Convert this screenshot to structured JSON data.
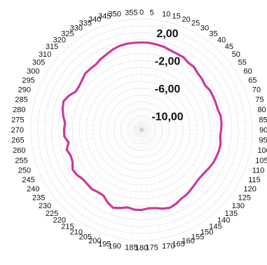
{
  "chart_data": {
    "type": "line",
    "subtype": "polar",
    "title": "",
    "angle_unit": "degrees",
    "angles": [
      0,
      5,
      10,
      15,
      20,
      25,
      30,
      35,
      40,
      45,
      50,
      55,
      60,
      65,
      70,
      75,
      80,
      85,
      90,
      95,
      100,
      105,
      110,
      115,
      120,
      125,
      130,
      135,
      140,
      145,
      150,
      155,
      160,
      165,
      170,
      175,
      180,
      185,
      190,
      195,
      200,
      205,
      210,
      215,
      220,
      225,
      230,
      235,
      240,
      245,
      250,
      255,
      260,
      265,
      270,
      275,
      280,
      285,
      290,
      295,
      300,
      305,
      310,
      315,
      320,
      325,
      330,
      335,
      340,
      345,
      350,
      355
    ],
    "angle_tick_labels": [
      "0",
      "5",
      "10",
      "15",
      "20",
      "25",
      "30",
      "35",
      "40",
      "45",
      "50",
      "55",
      "60",
      "65",
      "70",
      "75",
      "80",
      "85",
      "90",
      "95",
      "100",
      "105",
      "110",
      "115",
      "120",
      "125",
      "130",
      "135",
      "140",
      "145",
      "150",
      "155",
      "160",
      "165",
      "170",
      "175",
      "180",
      "185",
      "190",
      "195",
      "200",
      "205",
      "210",
      "215",
      "220",
      "225",
      "230",
      "235",
      "240",
      "245",
      "250",
      "255",
      "260",
      "265",
      "270",
      "275",
      "280",
      "285",
      "290",
      "295",
      "300",
      "305",
      "310",
      "315",
      "320",
      "325",
      "330",
      "335",
      "340",
      "345",
      "350",
      "355"
    ],
    "radial_range": [
      -12,
      4
    ],
    "radial_tick_labels": [
      "2,00",
      "-2,00",
      "-6,00",
      "-10,00"
    ],
    "radial_tick_values": [
      2,
      -2,
      -6,
      -10
    ],
    "grid": true,
    "series": [
      {
        "color": "#cc3a9a",
        "values": [
          0.6,
          0.6,
          0.5,
          0.4,
          0.2,
          0.1,
          0.1,
          -0.2,
          -0.2,
          -0.5,
          -0.6,
          -0.8,
          -0.6,
          -0.6,
          -0.6,
          -0.6,
          -0.4,
          -0.4,
          -0.5,
          -0.6,
          -0.4,
          -0.4,
          -0.5,
          -0.6,
          -0.8,
          -1.0,
          -1.1,
          -1.0,
          -0.8,
          -0.6,
          -0.5,
          -0.2,
          0.0,
          -0.2,
          -0.5,
          -0.6,
          -0.4,
          -0.4,
          -0.6,
          -0.3,
          0.0,
          -0.4,
          -1.0,
          -1.0,
          -0.8,
          -0.9,
          -0.9,
          -0.6,
          -0.5,
          -1.0,
          -1.1,
          -0.8,
          -1.3,
          -0.8,
          -0.8,
          -0.9,
          -0.5,
          -0.2,
          0.0,
          -0.4,
          -1.0,
          -1.0,
          -0.8,
          -0.5,
          -0.5,
          -0.5,
          -0.2,
          0.0,
          0.3,
          0.5,
          0.6,
          0.6
        ]
      }
    ]
  }
}
